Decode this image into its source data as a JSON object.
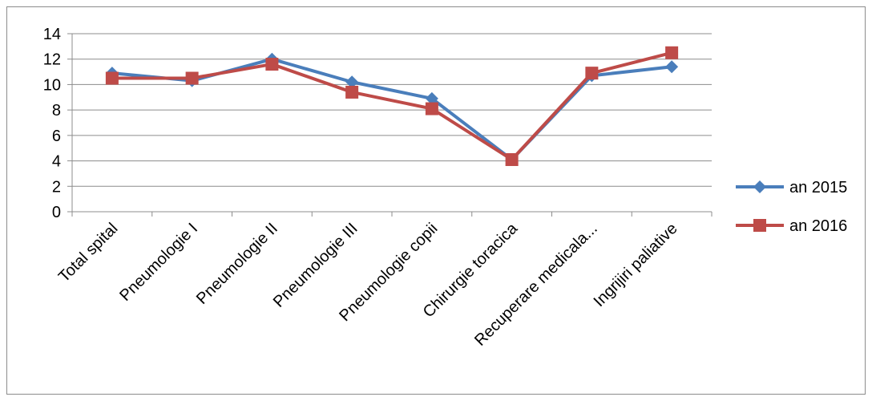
{
  "chart_data": {
    "type": "line",
    "categories": [
      "Total spital",
      "Pneumologie I",
      "Pneumologie II",
      "Pneumologie III",
      "Pneumologie copii",
      "Chirurgie toracica",
      "Recuperare medicala...",
      "Ingrijiri paliative"
    ],
    "series": [
      {
        "name": "an 2015",
        "values": [
          10.9,
          10.3,
          12.0,
          10.2,
          8.9,
          4.1,
          10.7,
          11.4
        ],
        "color": "#4a7ebb",
        "marker": "diamond"
      },
      {
        "name": "an 2016",
        "values": [
          10.5,
          10.5,
          11.6,
          9.4,
          8.1,
          4.1,
          10.9,
          12.5
        ],
        "color": "#be4b48",
        "marker": "square"
      }
    ],
    "y_ticks": [
      "0",
      "2",
      "4",
      "6",
      "8",
      "10",
      "12",
      "14"
    ],
    "ylim": [
      0,
      14
    ],
    "grid": "horizontal",
    "legend_position": "right"
  }
}
